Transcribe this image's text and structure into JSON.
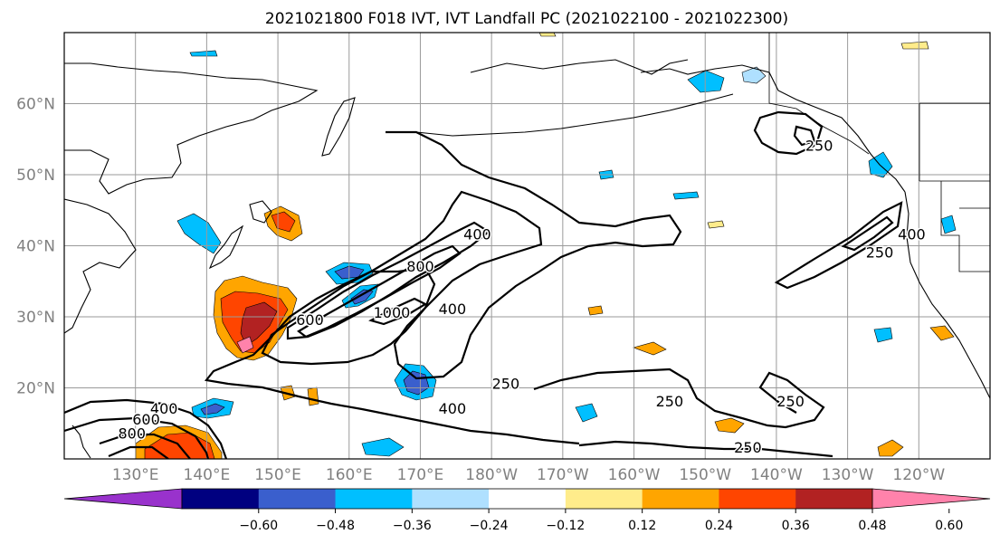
{
  "title": "2021021800 F018 IVT, IVT Landfall PC (2021022100 - 2021022300)",
  "map": {
    "lon_min": 120,
    "lon_max": 250,
    "lat_min": 10,
    "lat_max": 70,
    "lat_ticks": [
      "20°N",
      "30°N",
      "40°N",
      "50°N",
      "60°N"
    ],
    "lon_ticks": [
      "130°E",
      "140°E",
      "150°E",
      "160°E",
      "170°E",
      "180°W",
      "170°W",
      "160°W",
      "150°W",
      "140°W",
      "130°W",
      "120°W"
    ],
    "contour_labels": [
      {
        "text": "250",
        "lon": 226,
        "lat": 54
      },
      {
        "text": "400",
        "lon": 178,
        "lat": 41.5
      },
      {
        "text": "800",
        "lon": 170,
        "lat": 37
      },
      {
        "text": "1000",
        "lon": 166,
        "lat": 30.5
      },
      {
        "text": "600",
        "lon": 154.5,
        "lat": 29.5
      },
      {
        "text": "400",
        "lon": 174.5,
        "lat": 31
      },
      {
        "text": "250",
        "lon": 182,
        "lat": 20.5
      },
      {
        "text": "400",
        "lon": 174.5,
        "lat": 17
      },
      {
        "text": "250",
        "lon": 205,
        "lat": 18
      },
      {
        "text": "250",
        "lon": 216,
        "lat": 11.5
      },
      {
        "text": "250",
        "lon": 222,
        "lat": 18
      },
      {
        "text": "400",
        "lon": 239,
        "lat": 41.5
      },
      {
        "text": "250",
        "lon": 234.5,
        "lat": 39
      },
      {
        "text": "400",
        "lon": 134,
        "lat": 17
      },
      {
        "text": "600",
        "lon": 131.5,
        "lat": 15.5
      },
      {
        "text": "800",
        "lon": 129.5,
        "lat": 13.5
      }
    ]
  },
  "colorbar": {
    "colors": [
      "#9932cc",
      "#000080",
      "#3a5fcd",
      "#00bfff",
      "#afe0ff",
      "#ffffff",
      "#ffec8b",
      "#ffa500",
      "#ff4500",
      "#b22222",
      "#ff82ab"
    ],
    "tick_labels": [
      "−0.60",
      "−0.48",
      "−0.36",
      "−0.24",
      "−0.12",
      "0.12",
      "0.24",
      "0.36",
      "0.48",
      "0.60"
    ]
  }
}
